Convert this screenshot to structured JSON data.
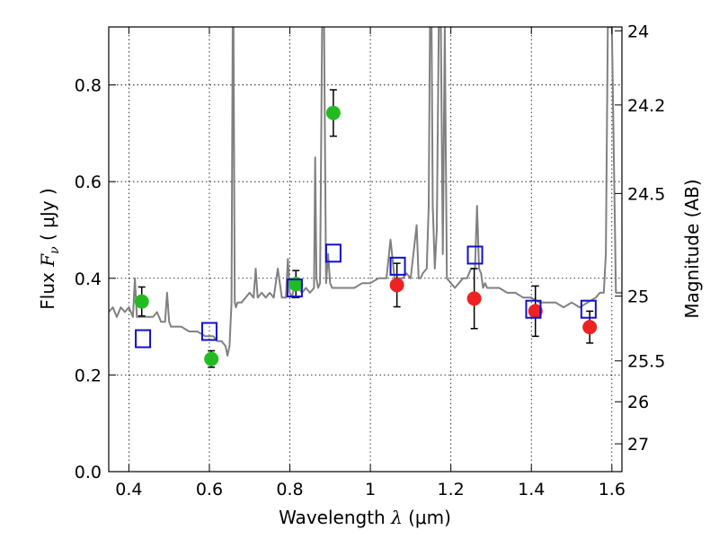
{
  "chart_data": {
    "type": "scatter",
    "title": "",
    "xlabel": {
      "prefix": "Wavelength  ",
      "symbol": "λ",
      "units": " (μm)"
    },
    "ylabel": {
      "prefix": "Flux  ",
      "symbol": "F",
      "subscript": "ν",
      "units": "  ( μJy )"
    },
    "y2label": "Magnitude (AB)",
    "xlim": [
      0.35,
      1.625
    ],
    "ylim": [
      0.0,
      0.92
    ],
    "grid": true,
    "legend": "none",
    "x_ticks": [
      {
        "value": 0.4,
        "label": "0.4"
      },
      {
        "value": 0.6,
        "label": "0.6"
      },
      {
        "value": 0.8,
        "label": "0.8"
      },
      {
        "value": 1.0,
        "label": "1"
      },
      {
        "value": 1.2,
        "label": "1.2"
      },
      {
        "value": 1.4,
        "label": "1.4"
      },
      {
        "value": 1.6,
        "label": "1.6"
      }
    ],
    "y_ticks": [
      {
        "value": 0.0,
        "label": "0.0"
      },
      {
        "value": 0.2,
        "label": "0.2"
      },
      {
        "value": 0.4,
        "label": "0.4"
      },
      {
        "value": 0.6,
        "label": "0.6"
      },
      {
        "value": 0.8,
        "label": "0.8"
      }
    ],
    "y2_ticks": [
      {
        "value": 24.0,
        "label": "24"
      },
      {
        "value": 24.2,
        "label": "24.2"
      },
      {
        "value": 24.5,
        "label": "24.5"
      },
      {
        "value": 25.0,
        "label": "25"
      },
      {
        "value": 25.5,
        "label": "25.5"
      },
      {
        "value": 26.0,
        "label": "26"
      },
      {
        "value": 27.0,
        "label": "27"
      }
    ],
    "series": [
      {
        "marker": "line",
        "color": "#808080",
        "x": [
          0.35,
          0.36,
          0.37,
          0.38,
          0.39,
          0.4,
          0.41,
          0.415,
          0.42,
          0.44,
          0.46,
          0.47,
          0.48,
          0.49,
          0.495,
          0.5,
          0.505,
          0.51,
          0.53,
          0.55,
          0.57,
          0.59,
          0.61,
          0.62,
          0.63,
          0.64,
          0.645,
          0.65,
          0.655,
          0.658,
          0.66,
          0.663,
          0.666,
          0.67,
          0.68,
          0.69,
          0.7,
          0.71,
          0.715,
          0.72,
          0.73,
          0.74,
          0.75,
          0.76,
          0.77,
          0.78,
          0.79,
          0.795,
          0.8,
          0.805,
          0.81,
          0.82,
          0.83,
          0.84,
          0.85,
          0.86,
          0.863,
          0.866,
          0.87,
          0.875,
          0.88,
          0.885,
          0.89,
          0.895,
          0.9,
          0.905,
          0.91,
          0.92,
          0.94,
          0.96,
          0.98,
          1.0,
          1.02,
          1.04,
          1.05,
          1.06,
          1.07,
          1.08,
          1.09,
          1.1,
          1.115,
          1.12,
          1.125,
          1.13,
          1.14,
          1.145,
          1.148,
          1.15,
          1.152,
          1.155,
          1.16,
          1.165,
          1.17,
          1.175,
          1.18,
          1.185,
          1.19,
          1.2,
          1.21,
          1.22,
          1.23,
          1.24,
          1.25,
          1.26,
          1.265,
          1.27,
          1.275,
          1.28,
          1.285,
          1.29,
          1.3,
          1.32,
          1.34,
          1.36,
          1.38,
          1.4,
          1.42,
          1.44,
          1.46,
          1.48,
          1.5,
          1.52,
          1.54,
          1.56,
          1.57,
          1.58,
          1.585,
          1.59,
          1.595,
          1.6,
          1.61,
          1.62,
          1.625
        ],
        "y": [
          0.33,
          0.34,
          0.32,
          0.34,
          0.33,
          0.34,
          0.32,
          0.4,
          0.32,
          0.32,
          0.32,
          0.33,
          0.31,
          0.31,
          0.37,
          0.31,
          0.3,
          0.3,
          0.3,
          0.29,
          0.29,
          0.28,
          0.28,
          0.27,
          0.27,
          0.26,
          0.24,
          0.26,
          0.35,
          0.92,
          0.92,
          0.35,
          0.34,
          0.35,
          0.35,
          0.36,
          0.37,
          0.36,
          0.42,
          0.36,
          0.37,
          0.36,
          0.37,
          0.36,
          0.42,
          0.36,
          0.36,
          0.44,
          0.37,
          0.36,
          0.38,
          0.38,
          0.37,
          0.38,
          0.37,
          0.38,
          0.65,
          0.4,
          0.38,
          0.39,
          0.92,
          0.92,
          0.39,
          0.45,
          0.39,
          0.38,
          0.38,
          0.38,
          0.38,
          0.38,
          0.39,
          0.39,
          0.4,
          0.4,
          0.48,
          0.4,
          0.4,
          0.4,
          0.41,
          0.4,
          0.51,
          0.4,
          0.4,
          0.41,
          0.42,
          0.55,
          0.92,
          0.92,
          0.92,
          0.55,
          0.42,
          0.5,
          0.92,
          0.92,
          0.45,
          0.92,
          0.4,
          0.39,
          0.38,
          0.39,
          0.4,
          0.4,
          0.42,
          0.42,
          0.55,
          0.42,
          0.41,
          0.38,
          0.39,
          0.38,
          0.38,
          0.38,
          0.37,
          0.37,
          0.36,
          0.36,
          0.35,
          0.35,
          0.35,
          0.34,
          0.35,
          0.34,
          0.35,
          0.36,
          0.37,
          0.37,
          0.45,
          0.92,
          0.92,
          0.92,
          0.37,
          0.37,
          0.37
        ]
      },
      {
        "marker": "circle",
        "color": "#22bb22",
        "x": [
          0.432,
          0.605,
          0.815,
          0.908
        ],
        "y": [
          0.352,
          0.233,
          0.388,
          0.742
        ],
        "yerr": [
          0.03,
          0.017,
          0.028,
          0.048
        ]
      },
      {
        "marker": "circle",
        "color": "#ee2222",
        "x": [
          1.066,
          1.258,
          1.41,
          1.545
        ],
        "y": [
          0.386,
          0.358,
          0.332,
          0.299
        ],
        "yerr": [
          0.045,
          0.062,
          0.052,
          0.033
        ]
      },
      {
        "marker": "square",
        "color": "#1010cc",
        "x": [
          0.435,
          0.6,
          0.812,
          0.908,
          1.068,
          1.26,
          1.405,
          1.542
        ],
        "y": [
          0.275,
          0.29,
          0.38,
          0.452,
          0.425,
          0.448,
          0.336,
          0.336
        ]
      }
    ]
  }
}
